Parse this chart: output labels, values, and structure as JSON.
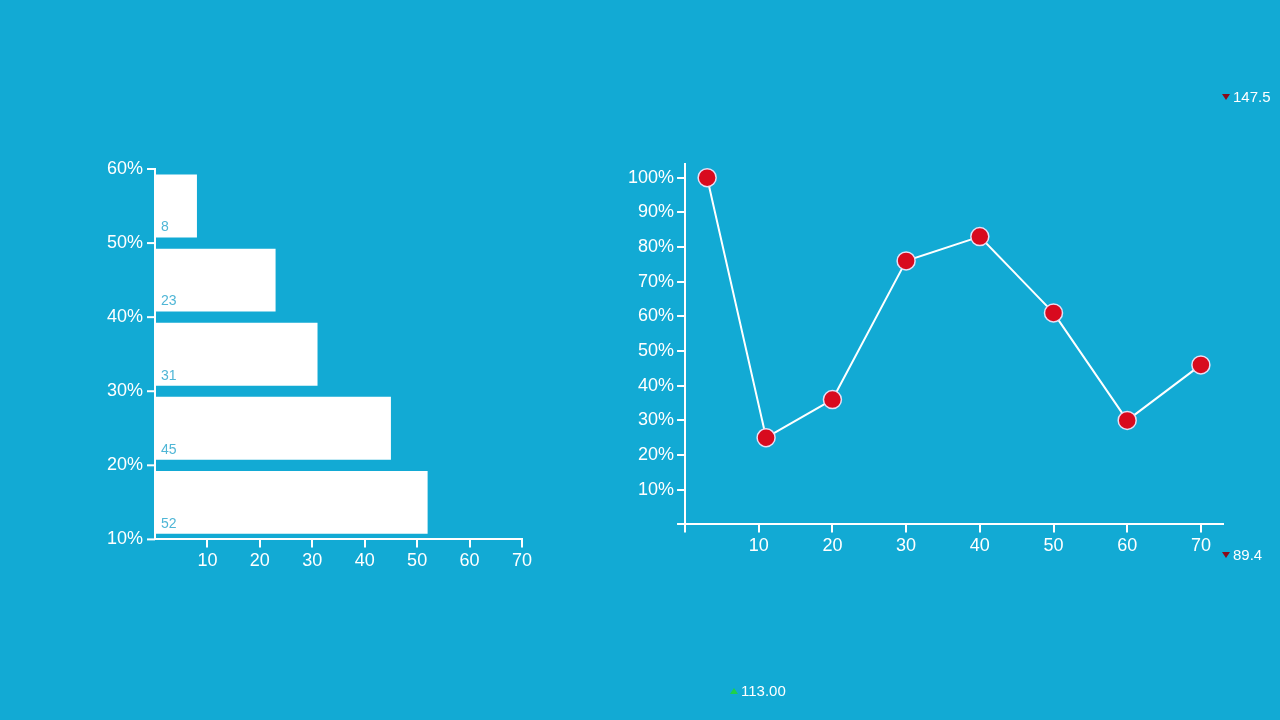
{
  "chart_data": [
    {
      "type": "bar",
      "orientation": "horizontal",
      "categories": [
        null,
        null,
        null,
        null,
        null
      ],
      "values": [
        8,
        23,
        31,
        45,
        52
      ],
      "data_labels": true,
      "color": "#ffffff",
      "xlim": [
        0,
        70
      ],
      "xticks": [
        10,
        20,
        30,
        40,
        50,
        60,
        70
      ],
      "annotations": [
        "10%",
        "20%",
        "30%",
        "40%",
        "50%",
        "60%"
      ]
    },
    {
      "type": "line",
      "x": [
        3,
        11,
        20,
        30,
        40,
        50,
        60,
        70
      ],
      "series": [
        {
          "color": "#ffffff",
          "values": [
            100,
            25,
            36,
            76,
            83,
            61,
            30,
            46
          ]
        }
      ],
      "marker": "circle",
      "line_style": "solid",
      "xlim": [
        0,
        73
      ],
      "xticks": [
        {
          "value": 0,
          "label": null
        },
        10,
        20,
        30,
        40,
        50,
        60,
        70
      ],
      "ylim": [
        0,
        104
      ],
      "yticks": [
        {
          "value": 0,
          "label": null
        },
        {
          "value": 10,
          "label": "10%"
        },
        {
          "value": 20,
          "label": "20%"
        },
        {
          "value": 30,
          "label": "30%"
        },
        {
          "value": 40,
          "label": "40%"
        },
        {
          "value": 50,
          "label": "50%"
        },
        {
          "value": 60,
          "label": "60%"
        },
        {
          "value": 70,
          "label": "70%"
        },
        {
          "value": 80,
          "label": "80%"
        },
        {
          "value": 90,
          "label": "90%"
        },
        {
          "value": 100,
          "label": "100%"
        }
      ],
      "annotations": [
        "147.5",
        "89.4",
        "113.00"
      ]
    }
  ]
}
